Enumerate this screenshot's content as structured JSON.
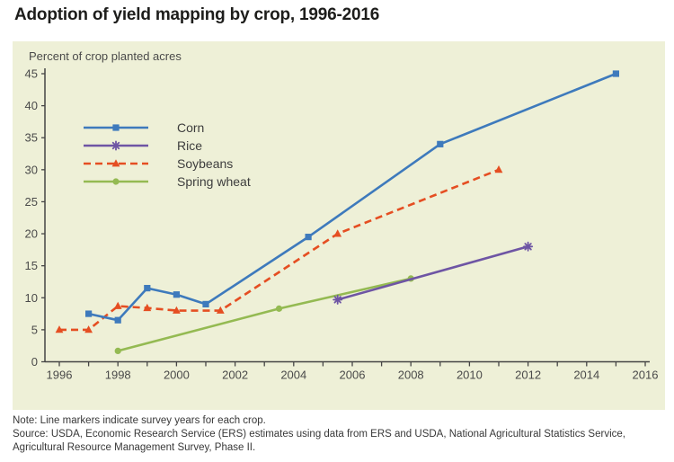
{
  "title": "Adoption of yield mapping by crop, 1996-2016",
  "chart_data": {
    "type": "line",
    "title": "Adoption of yield mapping by crop, 1996-2016",
    "y_axis_title": "Percent of crop planted acres",
    "xlabel": "",
    "ylabel": "Percent of crop planted acres",
    "x_range": [
      1996,
      2016
    ],
    "y_range": [
      0,
      45
    ],
    "x_tick_labels": [
      "1996",
      "1998",
      "2000",
      "2002",
      "2004",
      "2006",
      "2008",
      "2010",
      "2012",
      "2014",
      "2016"
    ],
    "x_minor_tick_step_years": 1,
    "y_tick_labels": [
      "0",
      "5",
      "10",
      "15",
      "20",
      "25",
      "30",
      "35",
      "40",
      "45"
    ],
    "grid": false,
    "legend_position": "upper-left-inside",
    "series": [
      {
        "name": "Corn",
        "color": "#3e7abc",
        "line_style": "solid",
        "marker": "square",
        "points": [
          [
            1997,
            7.5
          ],
          [
            1998,
            6.5
          ],
          [
            1999,
            11.5
          ],
          [
            2000,
            10.5
          ],
          [
            2001,
            9
          ],
          [
            2004.5,
            19.5
          ],
          [
            2009,
            34
          ],
          [
            2015,
            45
          ]
        ]
      },
      {
        "name": "Rice",
        "color": "#6e55a4",
        "line_style": "solid",
        "marker": "asterisk",
        "points": [
          [
            2005.5,
            9.7
          ],
          [
            2012,
            18
          ]
        ]
      },
      {
        "name": "Soybeans",
        "color": "#e54e22",
        "line_style": "dashed",
        "marker": "triangle",
        "points": [
          [
            1996,
            5
          ],
          [
            1997,
            5
          ],
          [
            1998,
            8.7
          ],
          [
            1999,
            8.4
          ],
          [
            2000,
            8
          ],
          [
            2001.5,
            8
          ],
          [
            2005.5,
            20
          ],
          [
            2011,
            30
          ]
        ]
      },
      {
        "name": "Spring wheat",
        "color": "#94ba52",
        "line_style": "solid",
        "marker": "circle",
        "points": [
          [
            1998,
            1.7
          ],
          [
            2003.5,
            8.3
          ],
          [
            2008,
            13
          ]
        ]
      }
    ]
  },
  "note": "Note: Line markers indicate survey years for each crop.",
  "source": "Source: USDA, Economic Research Service (ERS) estimates using data from ERS and USDA, National Agricultural Statistics Service, Agricultural Resource Management Survey, Phase II.",
  "colors": {
    "panel_bg": "#eef0d7",
    "axis": "#454545",
    "tick_text": "#4a4a4a",
    "legend_text": "#3d3d3d",
    "title_text": "#1d1d1b"
  }
}
